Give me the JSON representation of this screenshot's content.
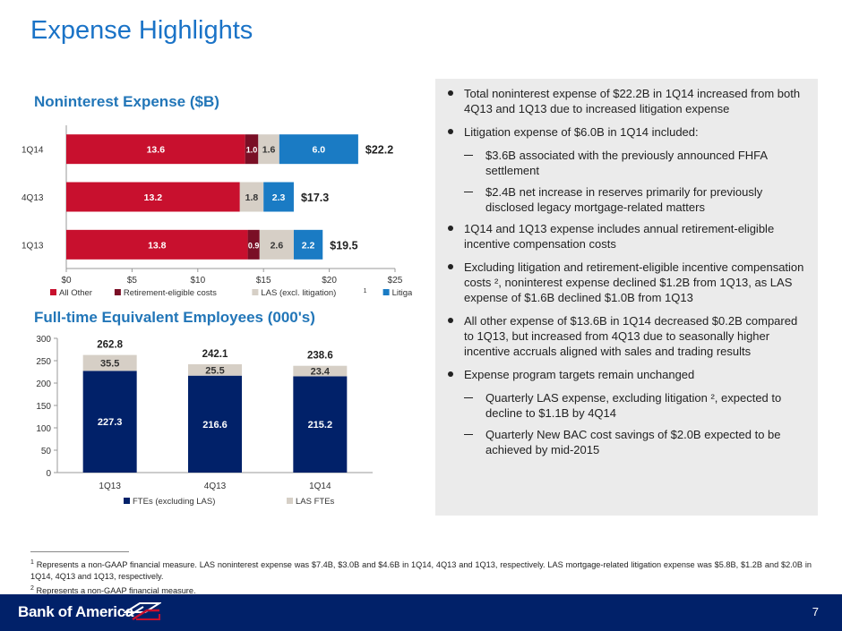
{
  "header": {
    "title": "Expense Highlights"
  },
  "chart_data": [
    {
      "type": "bar",
      "orientation": "horizontal",
      "stacked": true,
      "title": "Noninterest Expense ($B)",
      "categories": [
        "1Q14",
        "4Q13",
        "1Q13"
      ],
      "series": [
        {
          "name": "All Other",
          "values": [
            13.6,
            13.2,
            13.8
          ],
          "labels": [
            "13.6",
            "13.2",
            "13.8"
          ],
          "color": "#c8102e"
        },
        {
          "name": "Retirement-eligible costs",
          "values": [
            1.0,
            0,
            0.9
          ],
          "labels": [
            "1.0",
            "",
            "0.9"
          ],
          "color": "#7a0f26"
        },
        {
          "name": "LAS (excl. litigation)",
          "values": [
            1.6,
            1.8,
            2.6
          ],
          "labels": [
            "1.6",
            "1.8",
            "2.6"
          ],
          "color": "#d6cfc6"
        },
        {
          "name": "Litigation",
          "values": [
            6.0,
            2.3,
            2.2
          ],
          "labels": [
            "6.0",
            "2.3",
            "2.2"
          ],
          "color": "#1a7bc4"
        }
      ],
      "totals": [
        "$22.2",
        "$17.3",
        "$19.5"
      ],
      "xlim": [
        0,
        25
      ],
      "xticks": [
        "$0",
        "$5",
        "$10",
        "$15",
        "$20",
        "$25"
      ],
      "legend_position": "bottom",
      "legend_sup": "1"
    },
    {
      "type": "bar",
      "stacked": true,
      "title": "Full-time Equivalent Employees (000's)",
      "categories": [
        "1Q13",
        "4Q13",
        "1Q14"
      ],
      "series": [
        {
          "name": "FTEs (excluding LAS)",
          "values": [
            227.3,
            216.6,
            215.2
          ],
          "labels": [
            "227.3",
            "216.6",
            "215.2"
          ],
          "color": "#012169"
        },
        {
          "name": "LAS FTEs",
          "values": [
            35.5,
            25.5,
            23.4
          ],
          "labels": [
            "35.5",
            "25.5",
            "23.4"
          ],
          "color": "#d6cfc6"
        }
      ],
      "totals": [
        "262.8",
        "242.1",
        "238.6"
      ],
      "ylim": [
        0,
        300
      ],
      "yticks": [
        "0",
        "50",
        "100",
        "150",
        "200",
        "250",
        "300"
      ],
      "legend_position": "bottom"
    }
  ],
  "bullets": [
    {
      "level": 0,
      "text": "Total noninterest expense of $22.2B in 1Q14 increased from both 4Q13 and 1Q13 due to increased litigation expense"
    },
    {
      "level": 0,
      "text": "Litigation expense of $6.0B in 1Q14 included:"
    },
    {
      "level": 1,
      "text": "$3.6B associated with the previously announced FHFA settlement"
    },
    {
      "level": 1,
      "text": "$2.4B net increase in reserves primarily for previously disclosed legacy mortgage-related matters"
    },
    {
      "level": 0,
      "text": "1Q14 and 1Q13 expense includes annual retirement-eligible incentive compensation costs"
    },
    {
      "level": 0,
      "text": "Excluding litigation and retirement-eligible incentive compensation costs ², noninterest expense declined $1.2B from 1Q13, as LAS expense of $1.6B declined $1.0B from 1Q13"
    },
    {
      "level": 0,
      "text": "All other expense of $13.6B in 1Q14 decreased $0.2B compared to 1Q13, but increased from 4Q13 due to seasonally higher incentive accruals aligned with sales and trading results"
    },
    {
      "level": 0,
      "text": "Expense program targets remain unchanged"
    },
    {
      "level": 1,
      "text": "Quarterly LAS expense, excluding litigation ², expected to decline to $1.1B by 4Q14"
    },
    {
      "level": 1,
      "text": "Quarterly New BAC cost savings of $2.0B expected to be achieved by mid-2015"
    }
  ],
  "footnotes": [
    {
      "mark": "1",
      "text": "Represents a non-GAAP financial measure. LAS noninterest expense was $7.4B, $3.0B and $4.6B in 1Q14, 4Q13 and 1Q13, respectively. LAS mortgage-related litigation expense was $5.8B, $1.2B and $2.0B in 1Q14, 4Q13 and 1Q13, respectively."
    },
    {
      "mark": "2",
      "text": "Represents a non-GAAP financial measure."
    }
  ],
  "footer": {
    "logo": "Bank of America",
    "page_number": "7"
  }
}
